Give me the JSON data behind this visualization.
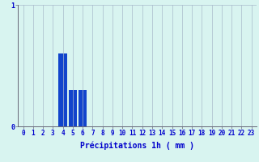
{
  "categories": [
    0,
    1,
    2,
    3,
    4,
    5,
    6,
    7,
    8,
    9,
    10,
    11,
    12,
    13,
    14,
    15,
    16,
    17,
    18,
    19,
    20,
    21,
    22,
    23
  ],
  "values": [
    0,
    0,
    0,
    0,
    0.6,
    0.3,
    0.3,
    0,
    0,
    0,
    0,
    0,
    0,
    0,
    0,
    0,
    0,
    0,
    0,
    0,
    0,
    0,
    0,
    0
  ],
  "bar_color": "#1144cc",
  "background_color": "#d8f4f0",
  "grid_color": "#aabbcc",
  "axis_color": "#666677",
  "text_color": "#0000cc",
  "xlabel": "Précipitations 1h ( mm )",
  "ylim": [
    0,
    1.0
  ],
  "xlim": [
    -0.5,
    23.5
  ],
  "yticks": [
    0,
    1
  ],
  "xlabel_fontsize": 7,
  "tick_fontsize": 5.5
}
